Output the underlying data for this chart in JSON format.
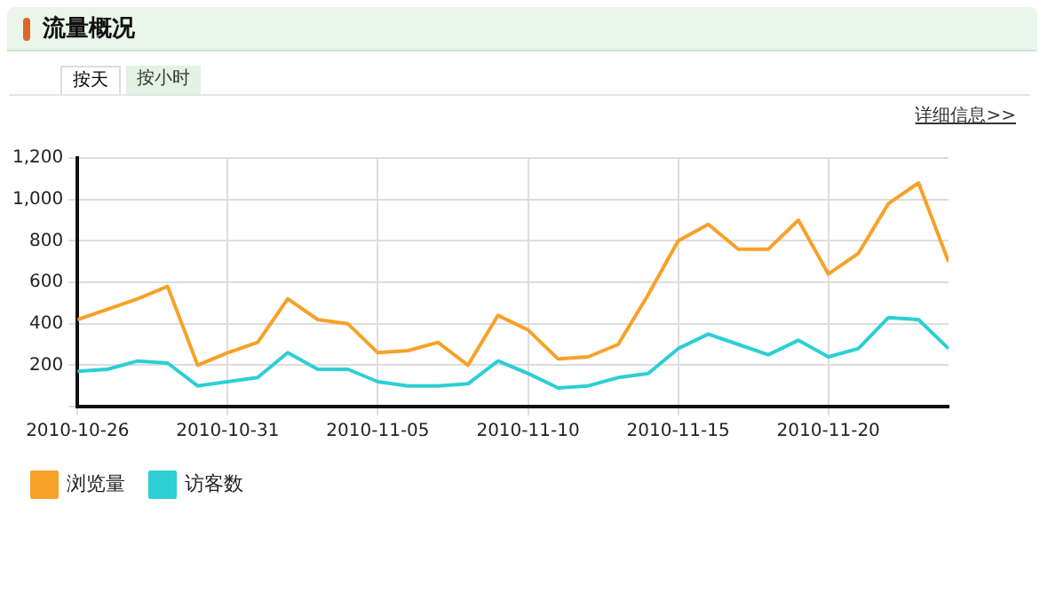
{
  "chart_data": {
    "type": "line",
    "title": "流量概况",
    "annotations": [
      "按天",
      "按小时",
      "详细信息>>"
    ],
    "x": [
      "2010-10-26",
      "2010-10-27",
      "2010-10-28",
      "2010-10-29",
      "2010-10-30",
      "2010-10-31",
      "2010-11-01",
      "2010-11-02",
      "2010-11-03",
      "2010-11-04",
      "2010-11-05",
      "2010-11-06",
      "2010-11-07",
      "2010-11-08",
      "2010-11-09",
      "2010-11-10",
      "2010-11-11",
      "2010-11-12",
      "2010-11-13",
      "2010-11-14",
      "2010-11-15",
      "2010-11-16",
      "2010-11-17",
      "2010-11-18",
      "2010-11-19",
      "2010-11-20",
      "2010-11-21",
      "2010-11-22",
      "2010-11-23",
      "2010-11-24"
    ],
    "series": [
      {
        "name": "浏览量",
        "color": "#f7a128",
        "values": [
          420,
          470,
          520,
          580,
          200,
          260,
          310,
          520,
          420,
          400,
          260,
          270,
          310,
          200,
          440,
          370,
          230,
          240,
          300,
          540,
          800,
          880,
          760,
          760,
          900,
          640,
          740,
          980,
          1080,
          700
        ]
      },
      {
        "name": "访客数",
        "color": "#2ccfd3",
        "values": [
          170,
          180,
          220,
          210,
          100,
          120,
          140,
          260,
          180,
          180,
          120,
          100,
          100,
          110,
          220,
          160,
          90,
          100,
          140,
          160,
          280,
          350,
          300,
          250,
          320,
          240,
          280,
          430,
          420,
          280
        ]
      }
    ],
    "xlim": [
      "2010-10-26",
      "2010-11-24"
    ],
    "xticks": [
      "2010-10-26",
      "2010-10-31",
      "2010-11-05",
      "2010-11-10",
      "2010-11-15",
      "2010-11-20"
    ],
    "ylim": [
      0,
      1200
    ],
    "yticks": [
      {
        "value": 0,
        "label": null
      },
      200,
      400,
      600,
      800,
      {
        "value": 1000,
        "label": "1,000"
      },
      {
        "value": 1200,
        "label": "1,200"
      }
    ],
    "grid": true,
    "legend": "bottom left",
    "marker": "none",
    "line_style": "solid"
  }
}
